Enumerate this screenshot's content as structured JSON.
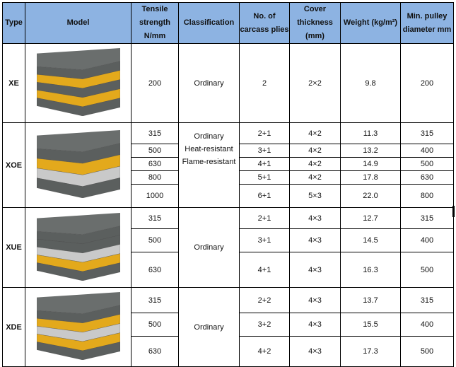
{
  "headers": [
    "Type",
    "Model",
    "Tensile strength N/mm",
    "Classification",
    "No. of carcass plies",
    "Cover thickness (mm)",
    "Weight (kg/m²)",
    "Min. pulley diameter mm"
  ],
  "colors": {
    "header_bg": "#8db3e2",
    "belt_grey": "#5b5f5e",
    "belt_yellow": "#e3a91c",
    "fabric_grey": "#c9c9c9"
  },
  "groups": [
    {
      "type": "XE",
      "image": "conveyor-belt-2-ply",
      "classification": [
        "Ordinary"
      ],
      "rows": [
        {
          "tensile": "200",
          "plies": "2",
          "cover": "2×2",
          "weight": "9.8",
          "pulley": "200"
        }
      ]
    },
    {
      "type": "XOE",
      "image": "conveyor-belt-fabric",
      "classification": [
        "Ordinary",
        "Heat-resistant",
        "Flame-resistant"
      ],
      "rows": [
        {
          "tensile": "315",
          "plies": "2+1",
          "cover": "4×2",
          "weight": "11.3",
          "pulley": "315"
        },
        {
          "tensile": "500",
          "plies": "3+1",
          "cover": "4×2",
          "weight": "13.2",
          "pulley": "400"
        },
        {
          "tensile": "630",
          "plies": "4+1",
          "cover": "4×2",
          "weight": "14.9",
          "pulley": "500"
        },
        {
          "tensile": "800",
          "plies": "5+1",
          "cover": "4×2",
          "weight": "17.8",
          "pulley": "630"
        },
        {
          "tensile": "1000",
          "plies": "6+1",
          "cover": "5×3",
          "weight": "22.0",
          "pulley": "800"
        }
      ]
    },
    {
      "type": "XUE",
      "image": "conveyor-belt-fabric",
      "classification": [
        "Ordinary"
      ],
      "rows": [
        {
          "tensile": "315",
          "plies": "2+1",
          "cover": "4×3",
          "weight": "12.7",
          "pulley": "315"
        },
        {
          "tensile": "500",
          "plies": "3+1",
          "cover": "4×3",
          "weight": "14.5",
          "pulley": "400"
        },
        {
          "tensile": "630",
          "plies": "4+1",
          "cover": "4×3",
          "weight": "16.3",
          "pulley": "500"
        }
      ]
    },
    {
      "type": "XDE",
      "image": "conveyor-belt-double",
      "classification": [
        "Ordinary"
      ],
      "rows": [
        {
          "tensile": "315",
          "plies": "2+2",
          "cover": "4×3",
          "weight": "13.7",
          "pulley": "315"
        },
        {
          "tensile": "500",
          "plies": "3+2",
          "cover": "4×3",
          "weight": "15.5",
          "pulley": "400"
        },
        {
          "tensile": "630",
          "plies": "4+2",
          "cover": "4×3",
          "weight": "17.3",
          "pulley": "500"
        }
      ]
    }
  ]
}
